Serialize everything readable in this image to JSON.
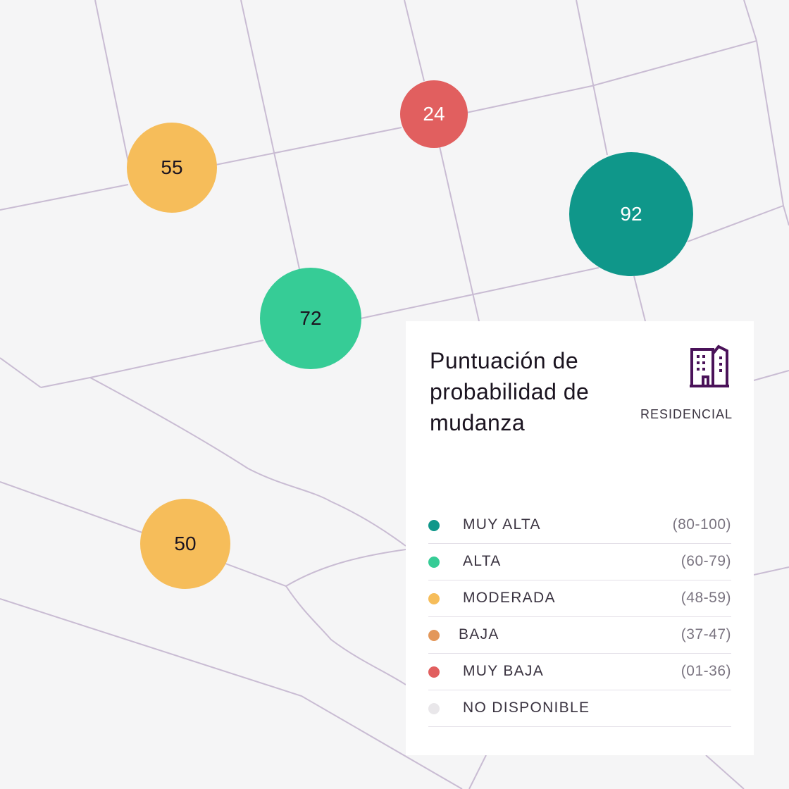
{
  "map": {
    "markers": [
      {
        "score": "55",
        "color": "#f6bd5a",
        "text_color": "#1b1420"
      },
      {
        "score": "24",
        "color": "#e15f5f",
        "text_color": "#ffffff"
      },
      {
        "score": "92",
        "color": "#0f978a",
        "text_color": "#ffffff"
      },
      {
        "score": "72",
        "color": "#36cc96",
        "text_color": "#1b1420"
      },
      {
        "score": "50",
        "color": "#f6bd5a",
        "text_color": "#1b1420"
      }
    ]
  },
  "panel": {
    "title": "Puntuación de probabilidad de mudanza",
    "icon": "building-icon",
    "category": "RESIDENCIAL",
    "legend": [
      {
        "label": "MUY ALTA",
        "range": "(80-100)",
        "color": "#0f978a"
      },
      {
        "label": "ALTA",
        "range": "(60-79)",
        "color": "#36cc96"
      },
      {
        "label": "MODERADA",
        "range": "(48-59)",
        "color": "#f6bd5a"
      },
      {
        "label": "BAJA",
        "range": "(37-47)",
        "color": "#e3975a"
      },
      {
        "label": "MUY BAJA",
        "range": "(01-36)",
        "color": "#e15f5f"
      },
      {
        "label": "NO DISPONIBLE",
        "range": "",
        "color": "#e9e7ea"
      }
    ]
  }
}
